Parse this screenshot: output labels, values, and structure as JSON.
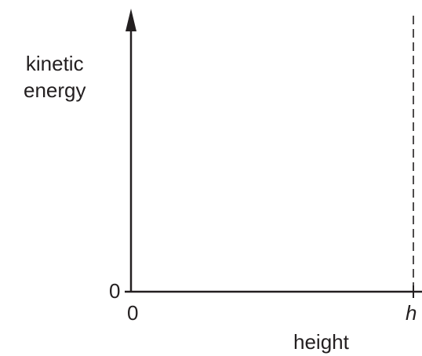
{
  "chart_data": {
    "type": "line",
    "title": "",
    "xlabel": "height",
    "ylabel": "kinetic\nenergy",
    "x_ticks": [
      "0",
      "h"
    ],
    "y_ticks": [
      "0"
    ],
    "grid": false,
    "reference_lines": [
      {
        "axis": "x",
        "at": "h",
        "style": "dashed"
      }
    ],
    "series": []
  },
  "colors": {
    "ink": "#231f20"
  }
}
